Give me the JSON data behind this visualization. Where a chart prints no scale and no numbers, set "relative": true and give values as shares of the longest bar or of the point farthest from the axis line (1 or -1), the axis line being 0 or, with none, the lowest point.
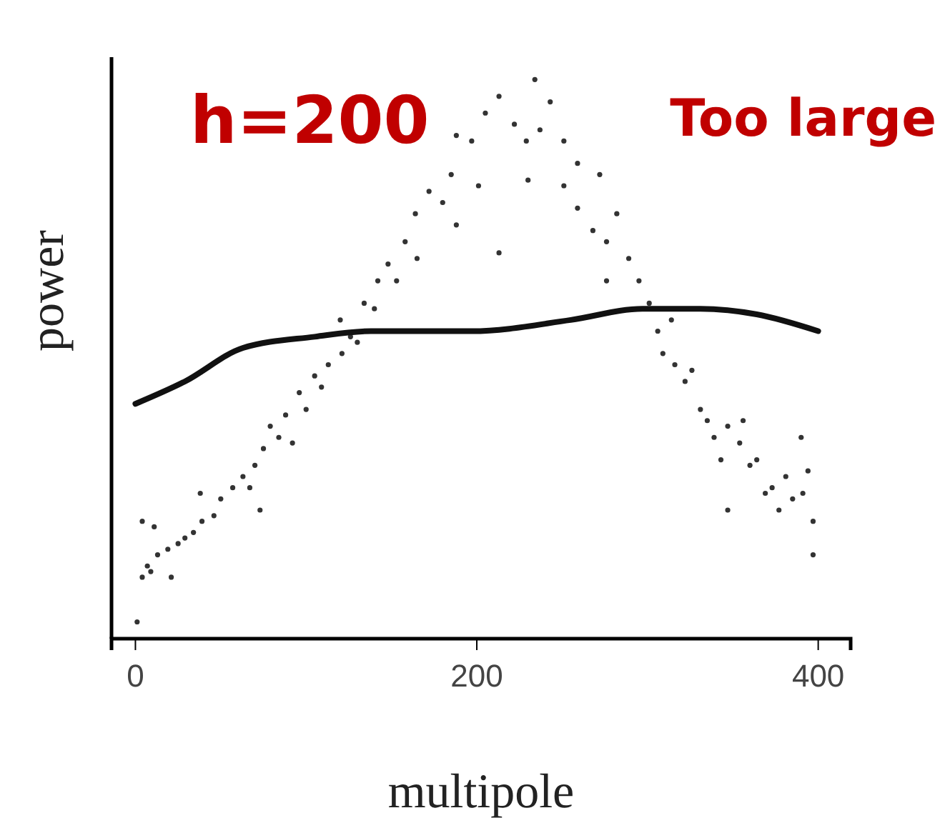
{
  "chart_data": {
    "type": "scatter",
    "xlabel": "multipole",
    "ylabel": "power",
    "relative": true,
    "annotations": [
      "h=200",
      "Too large"
    ],
    "xlim": [
      -14,
      419
    ],
    "xticks": [
      0,
      200,
      400
    ],
    "tick_labels": "x",
    "grid": false,
    "series": [
      {
        "marker": "circle",
        "color": "#333333",
        "x": [
          1,
          4,
          7,
          9,
          13,
          4,
          11,
          21,
          19,
          25,
          29,
          34,
          39,
          46,
          50,
          38,
          57,
          63,
          70,
          75,
          67,
          73,
          79,
          84,
          88,
          92,
          96,
          100,
          109,
          113,
          105,
          121,
          126,
          130,
          134,
          120,
          142,
          140,
          148,
          153,
          158,
          164,
          172,
          165,
          180,
          185,
          188,
          197,
          201,
          205,
          213,
          222,
          229,
          234,
          230,
          237,
          243,
          251,
          259,
          259,
          251,
          268,
          272,
          276,
          282,
          289,
          295,
          301,
          306,
          309,
          314,
          316,
          322,
          326,
          331,
          335,
          339,
          343,
          347,
          347,
          354,
          360,
          364,
          369,
          373,
          377,
          381,
          385,
          391,
          394,
          397,
          397,
          356,
          390,
          276,
          213,
          188
        ],
        "values": [
          0.03,
          0.11,
          0.13,
          0.12,
          0.15,
          0.21,
          0.2,
          0.11,
          0.16,
          0.17,
          0.18,
          0.19,
          0.21,
          0.22,
          0.25,
          0.26,
          0.27,
          0.29,
          0.31,
          0.34,
          0.27,
          0.23,
          0.38,
          0.36,
          0.4,
          0.35,
          0.44,
          0.41,
          0.45,
          0.49,
          0.47,
          0.51,
          0.54,
          0.53,
          0.6,
          0.57,
          0.64,
          0.59,
          0.67,
          0.64,
          0.71,
          0.76,
          0.8,
          0.68,
          0.78,
          0.83,
          0.9,
          0.89,
          0.81,
          0.94,
          0.97,
          0.92,
          0.89,
          1.0,
          0.82,
          0.91,
          0.96,
          0.89,
          0.85,
          0.77,
          0.81,
          0.73,
          0.83,
          0.71,
          0.76,
          0.68,
          0.64,
          0.6,
          0.55,
          0.51,
          0.57,
          0.49,
          0.46,
          0.48,
          0.41,
          0.39,
          0.36,
          0.32,
          0.38,
          0.23,
          0.35,
          0.31,
          0.32,
          0.26,
          0.27,
          0.23,
          0.29,
          0.25,
          0.26,
          0.3,
          0.21,
          0.15,
          0.39,
          0.36,
          0.64,
          0.69,
          0.74
        ]
      },
      {
        "type": "line",
        "color": "#111111",
        "x": [
          0,
          29,
          63,
          105,
          138,
          197,
          255,
          297,
          331,
          364,
          400
        ],
        "values": [
          0.42,
          0.46,
          0.52,
          0.54,
          0.55,
          0.55,
          0.57,
          0.59,
          0.59,
          0.58,
          0.55
        ]
      }
    ]
  }
}
